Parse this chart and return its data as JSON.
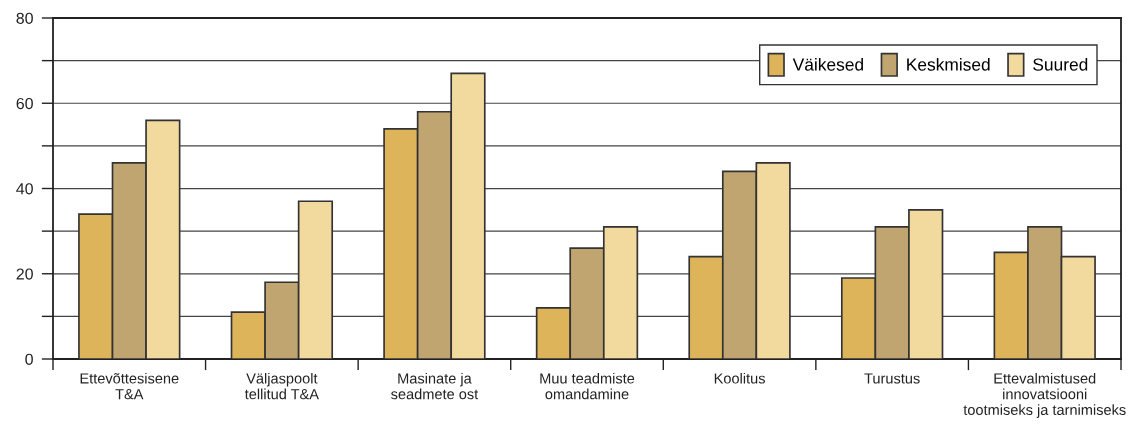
{
  "chart_data": {
    "type": "bar",
    "categories": [
      "Ettevõttesisene\nT&A",
      "Väljaspoolt\ntellitud T&A",
      "Masinate ja\nseadmete ost",
      "Muu teadmiste\nomandamine",
      "Koolitus",
      "Turustus",
      "Ettevalmistused\ninnovatsiooni\ntootmiseks ja tarnimiseks"
    ],
    "series": [
      {
        "name": "Väikesed",
        "color": "#deb45a",
        "values": [
          34,
          11,
          54,
          12,
          24,
          19,
          25
        ]
      },
      {
        "name": "Keskmised",
        "color": "#c0a571",
        "values": [
          46,
          18,
          58,
          26,
          44,
          31,
          31
        ]
      },
      {
        "name": "Suured",
        "color": "#f2d99e",
        "values": [
          56,
          37,
          67,
          31,
          46,
          35,
          24
        ]
      }
    ],
    "ylim": [
      0,
      80
    ],
    "yticks": [
      0,
      {
        "value": 10,
        "label": null
      },
      20,
      {
        "value": 30,
        "label": null
      },
      40,
      {
        "value": 50,
        "label": null
      },
      60,
      {
        "value": 70,
        "label": null
      },
      80
    ],
    "grid": "y",
    "legend": "top right"
  }
}
